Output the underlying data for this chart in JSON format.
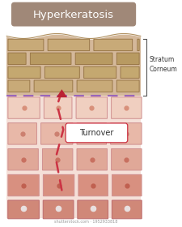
{
  "title": "Hyperkeratosis",
  "title_bg": "#a08878",
  "title_text_color": "#ffffff",
  "stratum_corneum_label": "Stratum\nCorneum",
  "turnover_label": "Turnover",
  "bg_color": "#ffffff",
  "sc_bg_color": "#d4b89a",
  "sc_cell_colors": [
    "#c8aa78",
    "#b89a62",
    "#c4a870"
  ],
  "sc_edge_color": "#9a7848",
  "live_row_colors": [
    "#f0cfc0",
    "#e8b8a8",
    "#e0a898",
    "#d89080"
  ],
  "live_cell_edge": "#d09090",
  "live_nuc_colors": [
    "#d8907a",
    "#cc8070",
    "#c87060",
    "#c06050"
  ],
  "bottom_row_color": "#d08878",
  "bottom_nuc_color": "#e8e0e0",
  "bottom_edge": "#c07070",
  "dashed_color": "#cc3344",
  "arrow_color": "#bb2233",
  "fig_width": 2.25,
  "fig_height": 2.8
}
